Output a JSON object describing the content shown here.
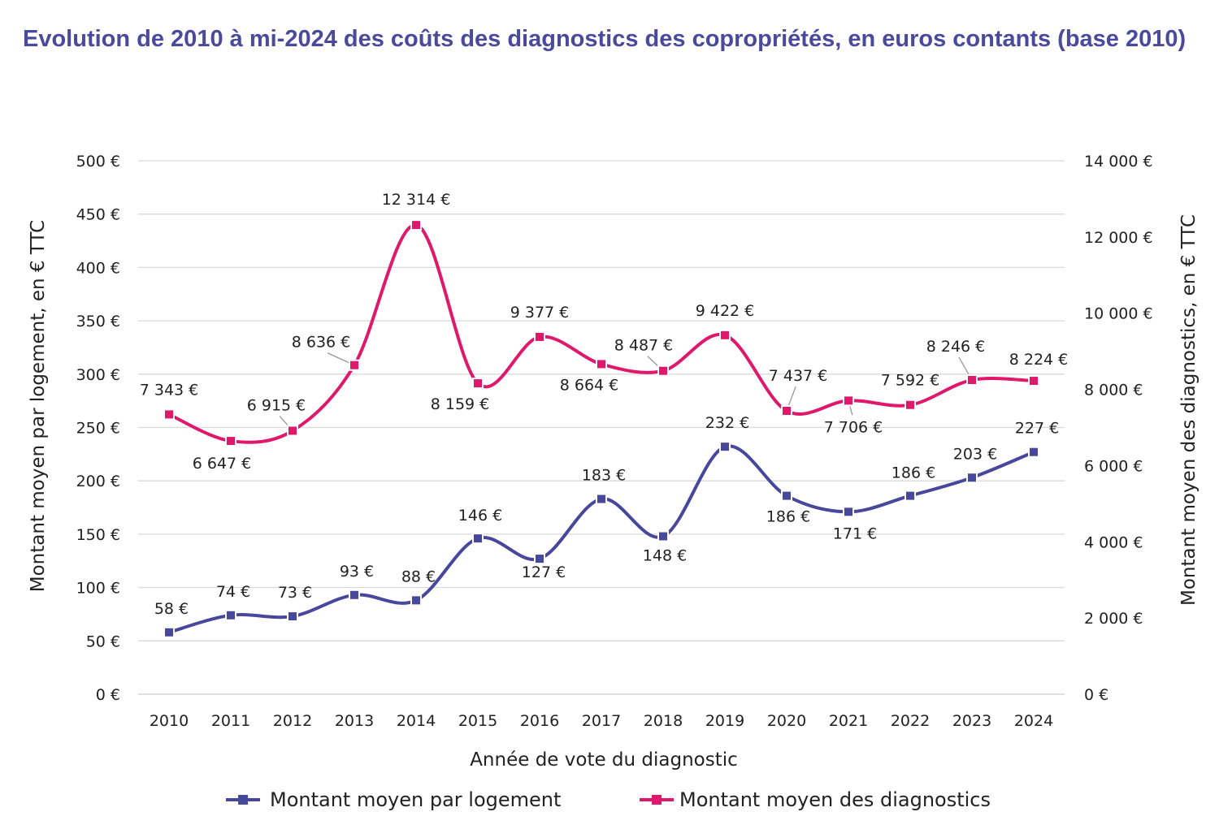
{
  "chart_data": {
    "type": "line",
    "title": "Evolution de 2010 à mi-2024 des coûts des diagnostics des copropriétés, en euros contants (base 2010)",
    "xlabel": "Année de vote du diagnostic",
    "ylabel_left": "Montant moyen par logement, en € TTC",
    "ylabel_right": "Montant moyen des diagnostics, en € TTC",
    "ylim_left": [
      0,
      500
    ],
    "ylim_right": [
      0,
      14000
    ],
    "yticks_left": [
      "0 €",
      "50 €",
      "100 €",
      "150 €",
      "200 €",
      "250 €",
      "300 €",
      "350 €",
      "400 €",
      "450 €",
      "500 €"
    ],
    "yticks_right": [
      "0 €",
      "2 000 €",
      "4 000 €",
      "6 000 €",
      "8 000 €",
      "10 000 €",
      "12 000 €",
      "14 000 €"
    ],
    "categories": [
      "2010",
      "2011",
      "2012",
      "2013",
      "2014",
      "2015",
      "2016",
      "2017",
      "2018",
      "2019",
      "2020",
      "2021",
      "2022",
      "2023",
      "2024"
    ],
    "grid": true,
    "legend_placement": "bottom",
    "series": [
      {
        "name": "Montant moyen par logement",
        "axis": "left",
        "color": "#47479c",
        "values": [
          58,
          74,
          73,
          93,
          88,
          146,
          127,
          183,
          148,
          232,
          186,
          171,
          186,
          203,
          227
        ],
        "labels": [
          "58 €",
          "74 €",
          "73 €",
          "93 €",
          "88 €",
          "146 €",
          "127 €",
          "183 €",
          "148 €",
          "232 €",
          "186 €",
          "171 €",
          "186 €",
          "203 €",
          "227 €"
        ]
      },
      {
        "name": "Montant moyen des diagnostics",
        "axis": "right",
        "color": "#e0186c",
        "values": [
          7343,
          6647,
          6915,
          8636,
          12314,
          8159,
          9377,
          8664,
          8487,
          9422,
          7437,
          7706,
          7592,
          8246,
          8224
        ],
        "labels": [
          "7 343 €",
          "6 647 €",
          "6 915 €",
          "8 636 €",
          "12 314 €",
          "8 159 €",
          "9 377 €",
          "8 664 €",
          "8 487 €",
          "9 422 €",
          "7 437 €",
          "7 706 €",
          "7 592 €",
          "8 246 €",
          "8 224 €"
        ]
      }
    ]
  }
}
